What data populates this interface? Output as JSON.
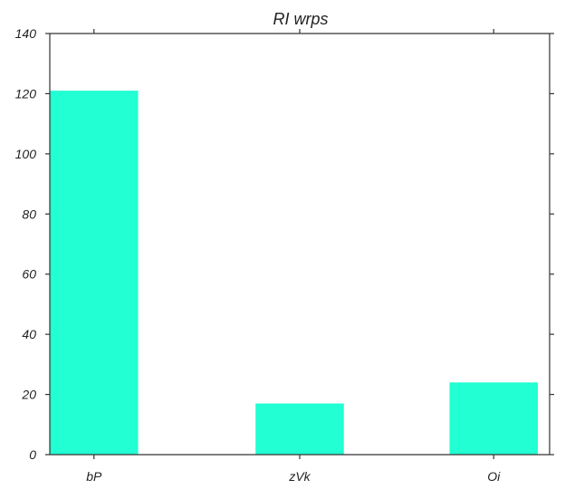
{
  "chart_data": {
    "type": "bar",
    "title": "RI wrps",
    "xlabel": "",
    "ylabel": "",
    "categories": [
      "bP",
      "zVk",
      "Oi"
    ],
    "values": [
      121,
      17,
      24
    ],
    "ylim": [
      0,
      140
    ],
    "yticks": [
      0,
      20,
      40,
      60,
      80,
      100,
      120,
      140
    ],
    "grid": false,
    "legend": "none",
    "colors": {
      "bar": "#22ffd2",
      "axis": "#333333",
      "text": "#222222"
    }
  }
}
